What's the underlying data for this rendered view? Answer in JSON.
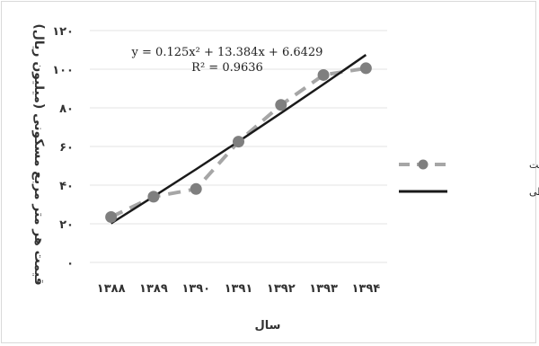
{
  "chart_data": {
    "type": "line",
    "xlabel": "سال",
    "ylabel": "قیمت هر متر مربع مسکونی (میلیون ریال)",
    "categories": [
      "۱۳۸۸",
      "۱۳۸۹",
      "۱۳۹۰",
      "۱۳۹۱",
      "۱۳۹۲",
      "۱۳۹۳",
      "۱۳۹۴"
    ],
    "y_ticks": [
      "۰",
      "۲۰",
      "۴۰",
      "۶۰",
      "۸۰",
      "۱۰۰",
      "۱۲۰"
    ],
    "ylim": [
      0,
      120
    ],
    "grid": true,
    "legend_position": "right",
    "series": [
      {
        "name": "روند تغییرات قیمت",
        "style": "dashed-with-markers",
        "color": "#a6a6a6",
        "marker_color": "#7f7f7f",
        "values": [
          23.5,
          34,
          38,
          62.5,
          81.5,
          97,
          100.5
        ]
      },
      {
        "name": "رگرسیون غیر خطی",
        "style": "solid",
        "color": "#1a1a1a",
        "values": [
          20.2,
          34.1,
          48.2,
          62.6,
          77.3,
          92.2,
          107.4
        ]
      }
    ],
    "annotation": {
      "equation": "y = 0.125x² + 13.384x + 6.6429",
      "r_squared": "R² = 0.9636"
    }
  }
}
